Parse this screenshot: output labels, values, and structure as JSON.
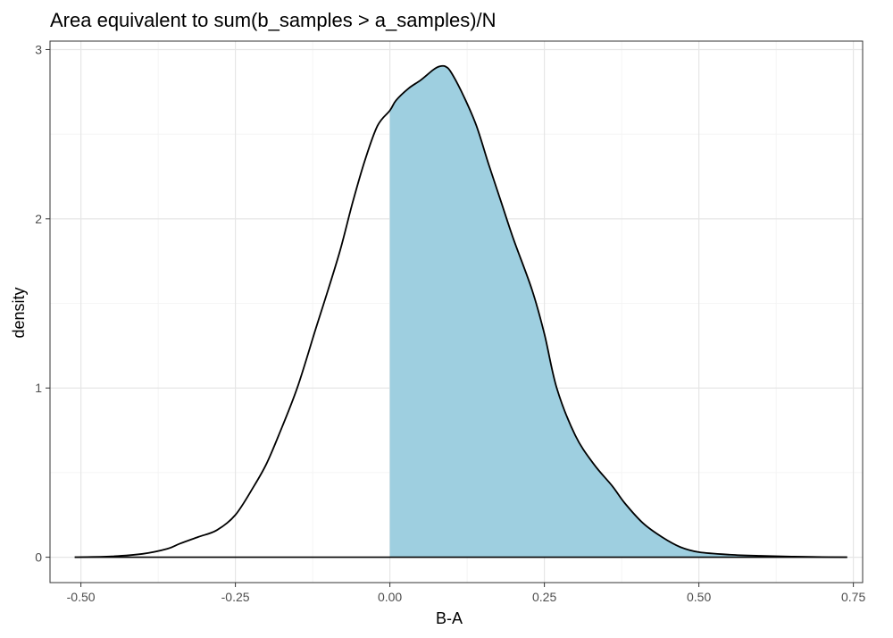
{
  "chart_data": {
    "type": "area",
    "title": "Area equivalent to sum(b_samples > a_samples)/N",
    "xlabel": "B-A",
    "ylabel": "density",
    "xlim": [
      -0.55,
      0.765
    ],
    "ylim": [
      -0.15,
      3.05
    ],
    "x_ticks": [
      -0.5,
      -0.25,
      0.0,
      0.25,
      0.5,
      0.75
    ],
    "x_tick_labels": [
      "-0.50",
      "-0.25",
      "0.00",
      "0.25",
      "0.50",
      "0.75"
    ],
    "y_ticks": [
      0,
      1,
      2,
      3
    ],
    "y_tick_labels": [
      "0",
      "1",
      "2",
      "3"
    ],
    "grid": true,
    "shaded_region": {
      "from_x": 0.0,
      "color": "#9ecfe0"
    },
    "line_color": "#000000",
    "series": [
      {
        "x": [
          -0.51,
          -0.45,
          -0.4,
          -0.36,
          -0.34,
          -0.31,
          -0.28,
          -0.25,
          -0.22,
          -0.2,
          -0.18,
          -0.15,
          -0.12,
          -0.1,
          -0.08,
          -0.06,
          -0.04,
          -0.02,
          0.0,
          0.01,
          0.03,
          0.05,
          0.07,
          0.08,
          0.09,
          0.1,
          0.12,
          0.14,
          0.16,
          0.18,
          0.2,
          0.23,
          0.25,
          0.27,
          0.3,
          0.33,
          0.36,
          0.38,
          0.41,
          0.44,
          0.47,
          0.5,
          0.55,
          0.6,
          0.65,
          0.7,
          0.74
        ],
        "y": [
          0.0,
          0.005,
          0.02,
          0.05,
          0.08,
          0.12,
          0.16,
          0.25,
          0.42,
          0.55,
          0.72,
          1.0,
          1.35,
          1.58,
          1.82,
          2.1,
          2.35,
          2.55,
          2.64,
          2.7,
          2.77,
          2.82,
          2.88,
          2.9,
          2.9,
          2.86,
          2.72,
          2.55,
          2.32,
          2.1,
          1.88,
          1.58,
          1.32,
          1.0,
          0.72,
          0.55,
          0.42,
          0.32,
          0.2,
          0.12,
          0.06,
          0.03,
          0.015,
          0.008,
          0.004,
          0.001,
          0.0
        ]
      }
    ]
  }
}
